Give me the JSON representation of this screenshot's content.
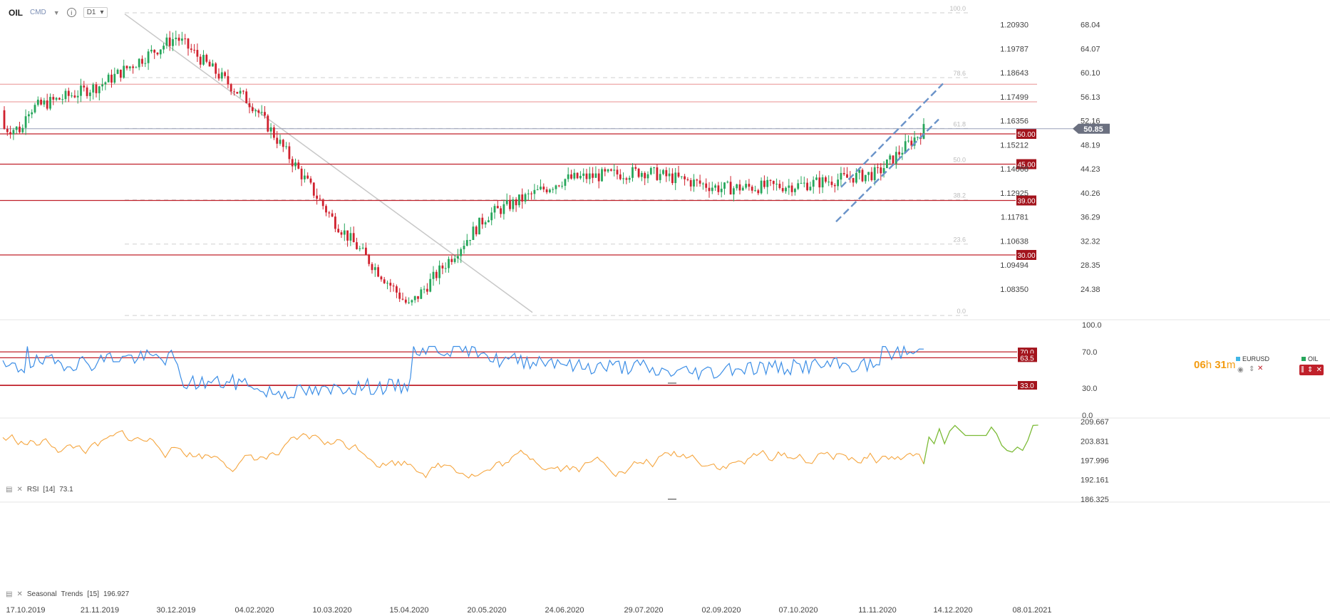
{
  "toolbar": {
    "symbol": "OIL",
    "type": "CMD",
    "timeframe": "D1"
  },
  "timer": {
    "hours": "06",
    "h": "h",
    "minutes": "31",
    "m": "m"
  },
  "legend": {
    "eurusd": {
      "label": "EURUSD",
      "color": "#41b6e6"
    },
    "oil": {
      "label": "OIL",
      "color": "#26a65b"
    }
  },
  "panels": {
    "rsi": {
      "label": "RSI",
      "period": "[14]",
      "value": "73.1"
    },
    "seasonal": {
      "label": "Seasonal",
      "name": "Trends",
      "period": "[15]",
      "value": "196.927"
    }
  },
  "colors": {
    "up": "#26a65b",
    "down": "#d0212e",
    "rsi_line": "#3c8ee6",
    "seasonal_line": "#f5a640",
    "seasonal_forecast": "#7cbb37",
    "level_line": "#c0202a",
    "channel": "#6a93c9",
    "trend": "#c8c8c8"
  },
  "chart_data": [
    {
      "type": "candlestick",
      "symbol": "OIL",
      "secondary_symbol": "EURUSD",
      "right_axis_ticks": [
        "68.04",
        "64.07",
        "60.10",
        "56.13",
        "52.16",
        "48.19",
        "44.23",
        "40.26",
        "36.29",
        "32.32",
        "28.35",
        "24.38"
      ],
      "left_axis_ticks": [
        "1.20930",
        "1.19787",
        "1.18643",
        "1.17499",
        "1.16356",
        "1.15212",
        "1.14068",
        "1.12925",
        "1.11781",
        "1.10638",
        "1.09494",
        "1.08350"
      ],
      "current_price": "50.85",
      "horizontal_levels": [
        "50.00",
        "45.00",
        "39.00",
        "30.00"
      ],
      "fibonacci_levels": [
        "100.0",
        "78.6",
        "61.8",
        "50.0",
        "38.2",
        "23.6",
        "0.0"
      ],
      "x_ticks": [
        "17.10.2019",
        "21.11.2019",
        "30.12.2019",
        "04.02.2020",
        "10.03.2020",
        "15.04.2020",
        "20.05.2020",
        "24.06.2020",
        "29.07.2020",
        "02.09.2020",
        "07.10.2020",
        "11.11.2020",
        "14.12.2020",
        "08.01.2021"
      ],
      "key_prices": [
        {
          "date": "17.10.2019",
          "price": 53.9
        },
        {
          "date": "21.11.2019",
          "price": 58.0
        },
        {
          "date": "30.12.2019",
          "price": 66.0
        },
        {
          "date": "04.02.2020",
          "price": 54.5
        },
        {
          "date": "10.03.2020",
          "price": 36.0
        },
        {
          "date": "15.04.2020",
          "price": 21.5
        },
        {
          "date": "20.05.2020",
          "price": 36.5
        },
        {
          "date": "24.06.2020",
          "price": 42.5
        },
        {
          "date": "29.07.2020",
          "price": 43.8
        },
        {
          "date": "02.09.2020",
          "price": 41.0
        },
        {
          "date": "07.10.2020",
          "price": 41.5
        },
        {
          "date": "11.11.2020",
          "price": 43.5
        },
        {
          "date": "current",
          "price": 50.85
        }
      ]
    },
    {
      "type": "line",
      "name": "RSI [14]",
      "y_ticks": [
        "100.0",
        "70.0",
        "30.0",
        "0.0"
      ],
      "levels": [
        "70.0",
        "63.5",
        "33.0"
      ],
      "current": 73.1
    },
    {
      "type": "line",
      "name": "Seasonal Trends [15]",
      "y_ticks": [
        "209.667",
        "203.831",
        "197.996",
        "192.161",
        "186.325"
      ],
      "current": 196.927
    }
  ]
}
